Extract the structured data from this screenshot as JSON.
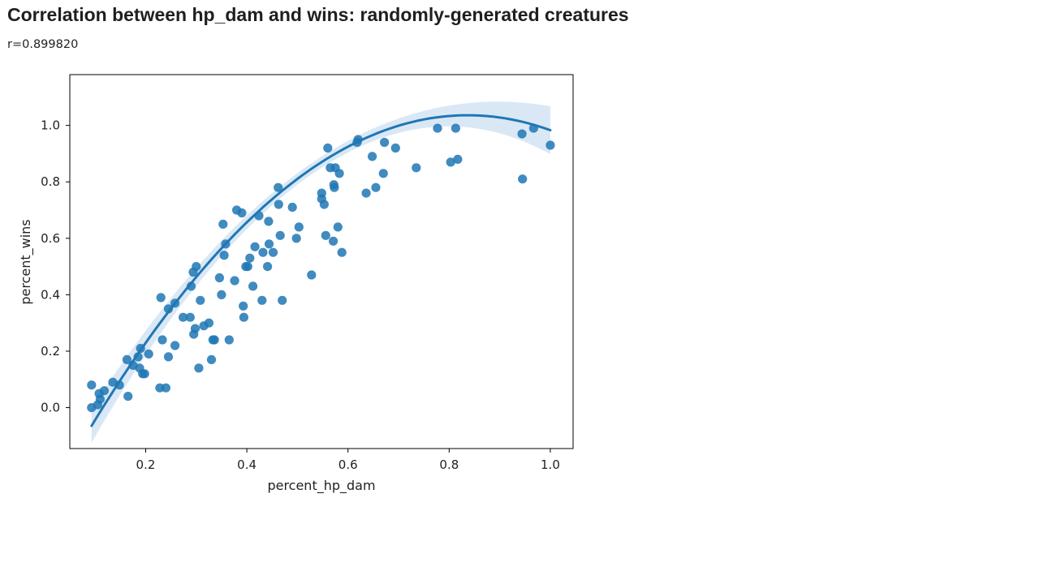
{
  "page": {
    "title": "Correlation between hp_dam and wins: randomly-generated creatures",
    "subtitle": "r=0.899820"
  },
  "colors": {
    "point": "#1f77b4",
    "line": "#1f77b4",
    "band": "#c6dbef",
    "axis": "#000000",
    "text": "#222222"
  },
  "chart_data": {
    "type": "scatter",
    "xlabel": "percent_hp_dam",
    "ylabel": "percent_wins",
    "xlim": [
      0.05,
      1.045
    ],
    "ylim": [
      -0.145,
      1.18
    ],
    "xticks": [
      0.2,
      0.4,
      0.6,
      0.8,
      1.0
    ],
    "xtick_labels": [
      "0.2",
      "0.4",
      "0.6",
      "0.8",
      "1.0"
    ],
    "yticks": [
      0.0,
      0.2,
      0.4,
      0.6,
      0.8,
      1.0
    ],
    "ytick_labels": [
      "0.0",
      "0.2",
      "0.4",
      "0.6",
      "0.8",
      "1.0"
    ],
    "grid": false,
    "legend": "none",
    "fit": {
      "kind": "polynomial-order-2",
      "coefficients": [
        -0.357,
        3.33,
        -1.99
      ],
      "x_range": [
        0.093,
        1.0
      ],
      "ci_width": {
        "edges": 0.06,
        "middle": 0.02,
        "right_edge": 0.085
      }
    },
    "points": [
      [
        0.093,
        0.08
      ],
      [
        0.093,
        0.0
      ],
      [
        0.105,
        0.01
      ],
      [
        0.108,
        0.05
      ],
      [
        0.11,
        0.03
      ],
      [
        0.118,
        0.06
      ],
      [
        0.135,
        0.09
      ],
      [
        0.148,
        0.08
      ],
      [
        0.163,
        0.17
      ],
      [
        0.165,
        0.04
      ],
      [
        0.175,
        0.15
      ],
      [
        0.185,
        0.18
      ],
      [
        0.188,
        0.14
      ],
      [
        0.19,
        0.21
      ],
      [
        0.194,
        0.12
      ],
      [
        0.198,
        0.12
      ],
      [
        0.206,
        0.19
      ],
      [
        0.228,
        0.07
      ],
      [
        0.23,
        0.39
      ],
      [
        0.233,
        0.24
      ],
      [
        0.24,
        0.07
      ],
      [
        0.245,
        0.35
      ],
      [
        0.245,
        0.18
      ],
      [
        0.258,
        0.22
      ],
      [
        0.258,
        0.37
      ],
      [
        0.274,
        0.32
      ],
      [
        0.288,
        0.32
      ],
      [
        0.29,
        0.43
      ],
      [
        0.294,
        0.48
      ],
      [
        0.295,
        0.26
      ],
      [
        0.298,
        0.28
      ],
      [
        0.3,
        0.5
      ],
      [
        0.305,
        0.14
      ],
      [
        0.308,
        0.38
      ],
      [
        0.315,
        0.29
      ],
      [
        0.325,
        0.3
      ],
      [
        0.33,
        0.17
      ],
      [
        0.333,
        0.24
      ],
      [
        0.336,
        0.24
      ],
      [
        0.365,
        0.24
      ],
      [
        0.346,
        0.46
      ],
      [
        0.35,
        0.4
      ],
      [
        0.353,
        0.65
      ],
      [
        0.355,
        0.54
      ],
      [
        0.358,
        0.58
      ],
      [
        0.376,
        0.45
      ],
      [
        0.38,
        0.7
      ],
      [
        0.39,
        0.69
      ],
      [
        0.393,
        0.36
      ],
      [
        0.394,
        0.32
      ],
      [
        0.398,
        0.5
      ],
      [
        0.402,
        0.5
      ],
      [
        0.406,
        0.53
      ],
      [
        0.412,
        0.43
      ],
      [
        0.416,
        0.57
      ],
      [
        0.424,
        0.68
      ],
      [
        0.43,
        0.38
      ],
      [
        0.432,
        0.55
      ],
      [
        0.441,
        0.5
      ],
      [
        0.443,
        0.66
      ],
      [
        0.444,
        0.58
      ],
      [
        0.452,
        0.55
      ],
      [
        0.462,
        0.78
      ],
      [
        0.463,
        0.72
      ],
      [
        0.466,
        0.61
      ],
      [
        0.47,
        0.38
      ],
      [
        0.49,
        0.71
      ],
      [
        0.498,
        0.6
      ],
      [
        0.503,
        0.64
      ],
      [
        0.528,
        0.47
      ],
      [
        0.548,
        0.74
      ],
      [
        0.548,
        0.76
      ],
      [
        0.553,
        0.72
      ],
      [
        0.556,
        0.61
      ],
      [
        0.56,
        0.92
      ],
      [
        0.565,
        0.85
      ],
      [
        0.571,
        0.59
      ],
      [
        0.572,
        0.79
      ],
      [
        0.573,
        0.78
      ],
      [
        0.575,
        0.85
      ],
      [
        0.58,
        0.64
      ],
      [
        0.583,
        0.83
      ],
      [
        0.588,
        0.55
      ],
      [
        0.618,
        0.94
      ],
      [
        0.62,
        0.95
      ],
      [
        0.636,
        0.76
      ],
      [
        0.648,
        0.89
      ],
      [
        0.655,
        0.78
      ],
      [
        0.67,
        0.83
      ],
      [
        0.672,
        0.94
      ],
      [
        0.694,
        0.92
      ],
      [
        0.735,
        0.85
      ],
      [
        0.777,
        0.99
      ],
      [
        0.803,
        0.87
      ],
      [
        0.813,
        0.99
      ],
      [
        0.817,
        0.88
      ],
      [
        0.944,
        0.97
      ],
      [
        0.945,
        0.81
      ],
      [
        0.967,
        0.99
      ],
      [
        1.0,
        0.93
      ]
    ]
  }
}
